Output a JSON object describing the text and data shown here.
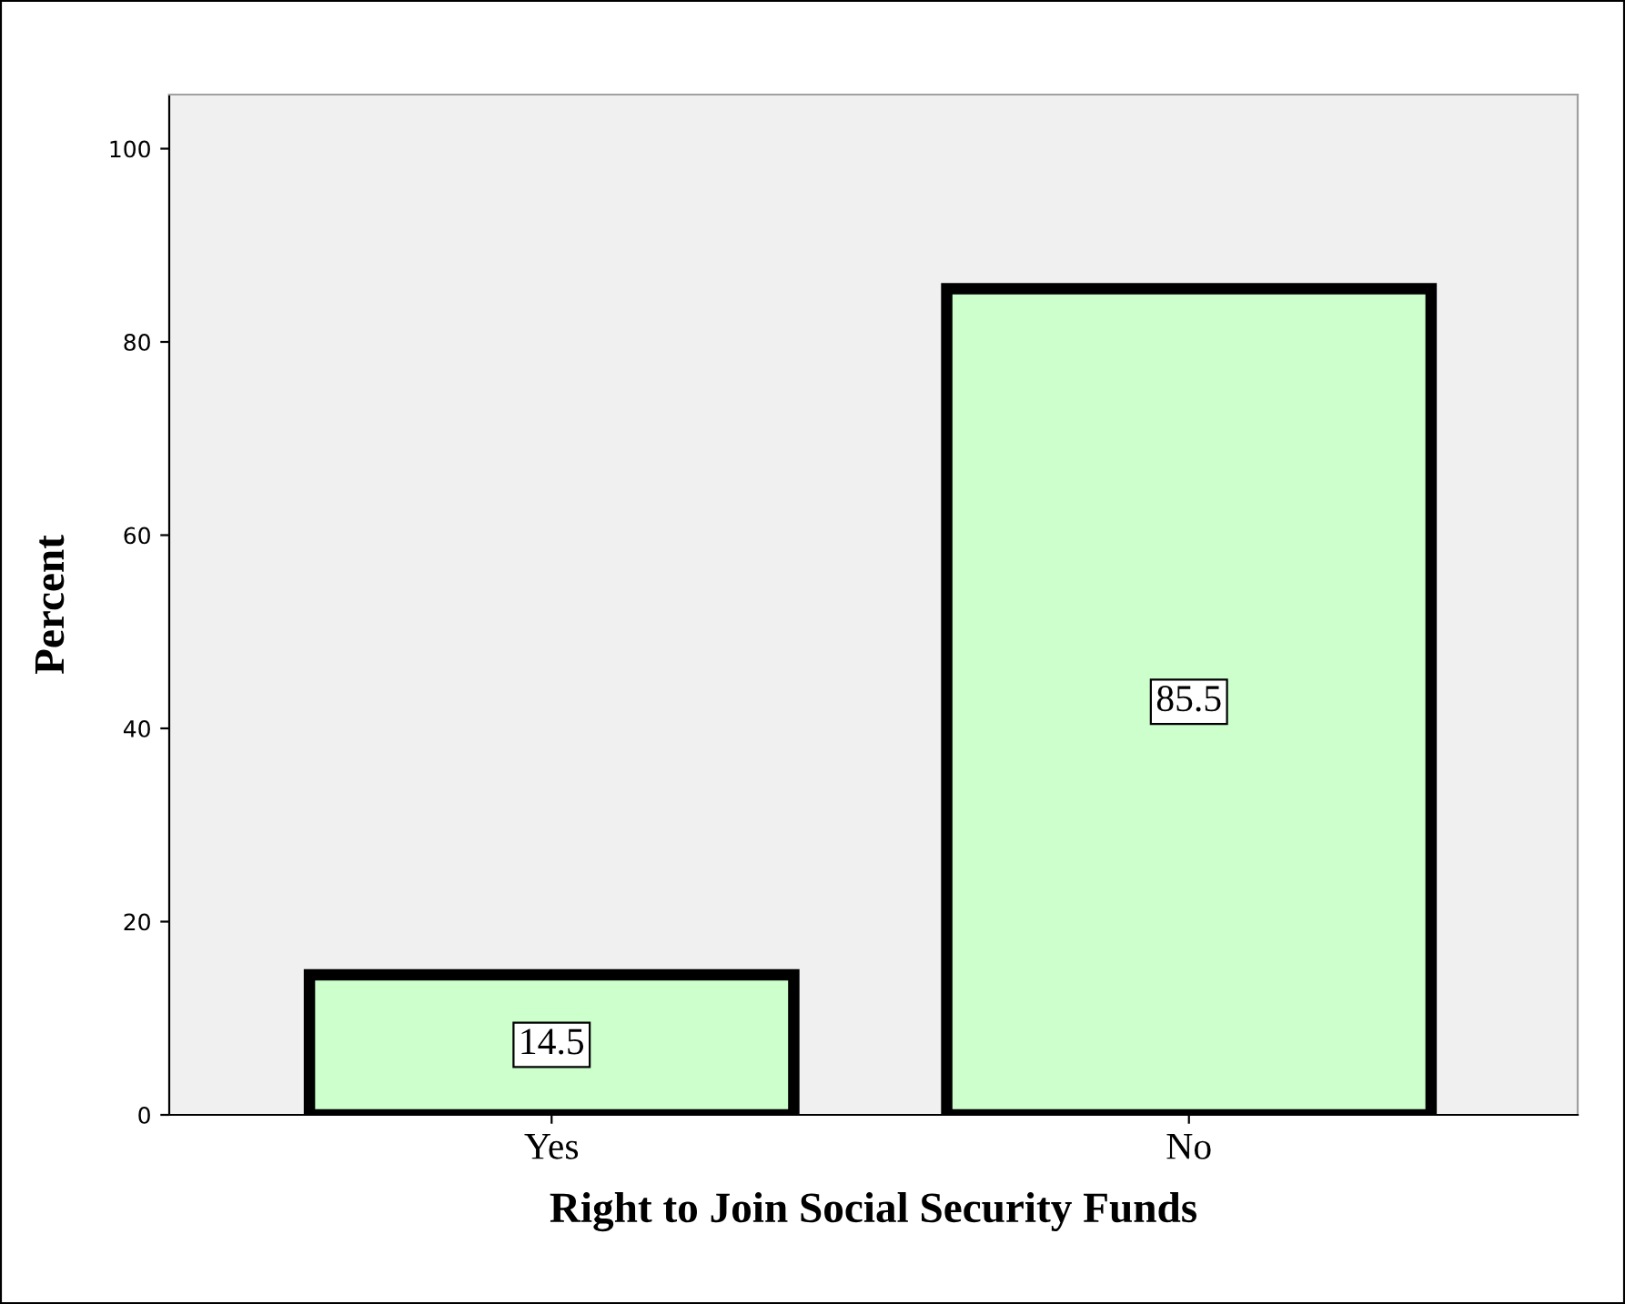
{
  "chart_data": {
    "type": "bar",
    "xlabel": "Right to Join Social Security Funds",
    "ylabel": "Percent",
    "categories": [
      "Yes",
      "No"
    ],
    "values": [
      14.5,
      85.5
    ],
    "color": "#ccffcc",
    "ylim": [
      0,
      105.6
    ],
    "yticks": [
      0,
      20,
      40,
      60,
      80,
      100
    ],
    "grid": false,
    "data_labels": true
  }
}
